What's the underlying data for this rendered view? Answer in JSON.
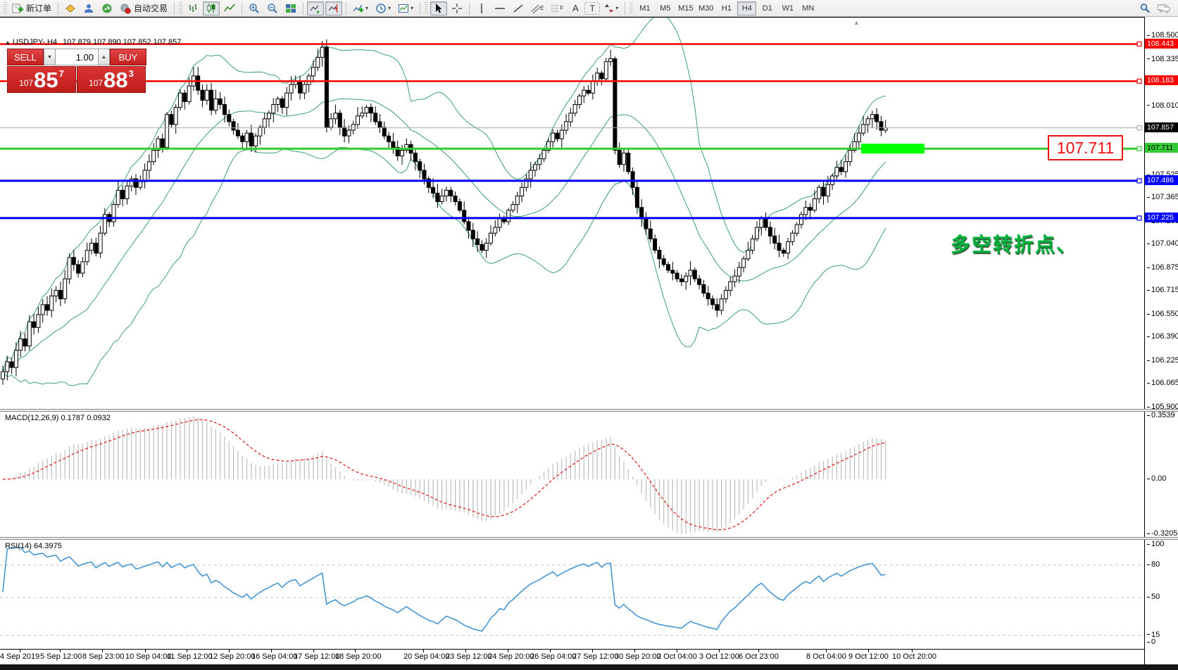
{
  "toolbar": {
    "new_order": "新订单",
    "autotrading": "自动交易",
    "timeframes": [
      "M1",
      "M5",
      "M15",
      "M30",
      "H1",
      "H4",
      "D1",
      "W1",
      "MN"
    ],
    "active_timeframe": "H4"
  },
  "icons": {
    "caret": "▾",
    "triangle_up": "▲",
    "step_down": "▼",
    "step_up": "▲",
    "text_tool": "A",
    "label_tool": "T",
    "channel_letter": "E",
    "fibo_letter": "F",
    "scroll_marker": "▲"
  },
  "chart": {
    "header": {
      "symbol_tf": "USDJPY-,H4",
      "ohlc": "107.879 107.890 107.852 107.857"
    },
    "one_click": {
      "sell_label": "SELL",
      "buy_label": "BUY",
      "volume": "1.00",
      "sell_prefix": "107",
      "sell_big": "85",
      "sell_sup": "7",
      "buy_prefix": "107",
      "buy_big": "88",
      "buy_sup": "3"
    },
    "macd": {
      "name": "MACD(12,26,9)",
      "main_value": "0.1787",
      "signal_value": "0.0932"
    },
    "rsi": {
      "name": "RSI(14)",
      "value": "64.3975"
    },
    "annotations": {
      "price_box_text": "107.711",
      "cn_text": "多空转折点、"
    }
  },
  "chart_data": {
    "type": "candlestick",
    "symbol": "USDJPY-",
    "timeframe": "H4",
    "ohlc_header": {
      "open": "107.879",
      "high": "107.890",
      "low": "107.852",
      "close": "107.857"
    },
    "ylim": [
      105.9,
      108.5
    ],
    "yticks": [
      "108.500",
      "108.335",
      "108.170",
      "108.010",
      "107.845",
      "107.690",
      "107.525",
      "107.365",
      "107.200",
      "107.040",
      "106.875",
      "106.715",
      "106.550",
      "106.390",
      "106.225",
      "106.065",
      "105.900"
    ],
    "bands": "bollinger",
    "closes": [
      106.15,
      106.22,
      106.18,
      106.3,
      106.38,
      106.33,
      106.5,
      106.46,
      106.55,
      106.62,
      106.58,
      106.68,
      106.72,
      106.66,
      106.8,
      106.95,
      106.9,
      106.84,
      106.92,
      107.0,
      107.05,
      106.98,
      107.12,
      107.25,
      107.2,
      107.32,
      107.42,
      107.36,
      107.45,
      107.5,
      107.44,
      107.48,
      107.56,
      107.62,
      107.7,
      107.78,
      107.72,
      107.95,
      107.88,
      108.0,
      108.1,
      108.04,
      108.15,
      108.22,
      108.12,
      108.05,
      108.12,
      107.98,
      108.06,
      108.02,
      107.95,
      107.9,
      107.84,
      107.8,
      107.76,
      107.82,
      107.73,
      107.8,
      107.86,
      107.92,
      107.96,
      108.02,
      108.06,
      108.0,
      108.1,
      108.16,
      108.18,
      108.1,
      108.16,
      108.22,
      108.28,
      108.35,
      108.42,
      107.86,
      107.92,
      107.96,
      107.86,
      107.8,
      107.84,
      107.88,
      107.94,
      107.96,
      108.0,
      107.96,
      107.9,
      107.86,
      107.8,
      107.76,
      107.72,
      107.66,
      107.7,
      107.74,
      107.68,
      107.62,
      107.56,
      107.5,
      107.44,
      107.4,
      107.34,
      107.38,
      107.42,
      107.38,
      107.34,
      107.28,
      107.2,
      107.14,
      107.08,
      107.04,
      107.0,
      107.05,
      107.12,
      107.16,
      107.22,
      107.2,
      107.28,
      107.32,
      107.38,
      107.44,
      107.5,
      107.56,
      107.6,
      107.64,
      107.7,
      107.76,
      107.82,
      107.78,
      107.84,
      107.9,
      107.96,
      108.02,
      108.08,
      108.12,
      108.1,
      108.18,
      108.24,
      108.2,
      108.32,
      108.34,
      107.7,
      107.6,
      107.68,
      107.55,
      107.44,
      107.3,
      107.22,
      107.15,
      107.08,
      107.0,
      106.94,
      106.9,
      106.86,
      106.84,
      106.8,
      106.78,
      106.82,
      106.86,
      106.8,
      106.76,
      106.7,
      106.66,
      106.62,
      106.58,
      106.66,
      106.72,
      106.78,
      106.82,
      106.88,
      106.94,
      107.0,
      107.08,
      107.16,
      107.22,
      107.16,
      107.1,
      107.05,
      107.0,
      106.98,
      107.06,
      107.12,
      107.18,
      107.25,
      107.3,
      107.28,
      107.36,
      107.44,
      107.38,
      107.46,
      107.52,
      107.58,
      107.55,
      107.62,
      107.7,
      107.76,
      107.82,
      107.88,
      107.92,
      107.95,
      107.9,
      107.84,
      107.857
    ],
    "x_first_bar": 4,
    "bar_spacing": 6.3,
    "levels": [
      {
        "price": "108.443",
        "color": "#ff0000",
        "width": 2.5,
        "chip_bg": "#ff0000",
        "chip_fg": "#ffffff"
      },
      {
        "price": "108.183",
        "color": "#ff0000",
        "width": 2.5,
        "chip_bg": "#ff0000",
        "chip_fg": "#ffffff"
      },
      {
        "price": "107.857",
        "color": "#a8a8a8",
        "width": 1,
        "chip_bg": "#000000",
        "chip_fg": "#ffffff"
      },
      {
        "price": "107.711",
        "color": "#33cc33",
        "width": 3,
        "chip_bg": "#33cc33",
        "chip_fg": "#000000"
      },
      {
        "price": "107.486",
        "color": "#0000ff",
        "width": 3,
        "chip_bg": "#0000ff",
        "chip_fg": "#ffffff"
      },
      {
        "price": "107.225",
        "color": "#0000ff",
        "width": 3,
        "chip_bg": "#0000ff",
        "chip_fg": "#ffffff"
      }
    ],
    "highlight_rect": {
      "x": 1223,
      "width": 90,
      "price": "107.711",
      "color": "#00ff00",
      "height": 14
    },
    "time_axis": [
      {
        "x": 0,
        "label": "4 Sep 2019"
      },
      {
        "x": 57,
        "label": "5 Sep 12:00"
      },
      {
        "x": 117,
        "label": "8 Sep 23:00"
      },
      {
        "x": 178,
        "label": "10 Sep 04:00"
      },
      {
        "x": 237,
        "label": "11 Sep 12:00"
      },
      {
        "x": 297,
        "label": "12 Sep 20:00"
      },
      {
        "x": 357,
        "label": "16 Sep 04:00"
      },
      {
        "x": 417,
        "label": "17 Sep 12:00"
      },
      {
        "x": 476,
        "label": "18 Sep 20:00"
      },
      {
        "x": 573,
        "label": "20 Sep 04:00"
      },
      {
        "x": 633,
        "label": "23 Sep 12:00"
      },
      {
        "x": 693,
        "label": "24 Sep 20:00"
      },
      {
        "x": 753,
        "label": "26 Sep 04:00"
      },
      {
        "x": 813,
        "label": "27 Sep 12:00"
      },
      {
        "x": 873,
        "label": "30 Sep 20:00"
      },
      {
        "x": 933,
        "label": "2 Oct 04:00"
      },
      {
        "x": 993,
        "label": "3 Oct 12:00"
      },
      {
        "x": 1049,
        "label": "6 Oct 23:00"
      },
      {
        "x": 1145,
        "label": "8 Oct 04:00"
      },
      {
        "x": 1205,
        "label": "9 Oct 12:00"
      },
      {
        "x": 1267,
        "label": "10 Oct 20:00"
      }
    ],
    "subcharts": [
      {
        "type": "bar",
        "name": "MACD(12,26,9)",
        "values": "derived from closes",
        "axis": [
          "0.3539",
          "0.00",
          "-0.3205"
        ],
        "main": "0.1787",
        "signal": "0.0932"
      },
      {
        "type": "line",
        "name": "RSI(14)",
        "value": "64.3975",
        "axis": [
          "100",
          "80",
          "50",
          "15",
          "0"
        ],
        "dashed_levels": [
          80,
          50,
          15
        ]
      }
    ]
  }
}
